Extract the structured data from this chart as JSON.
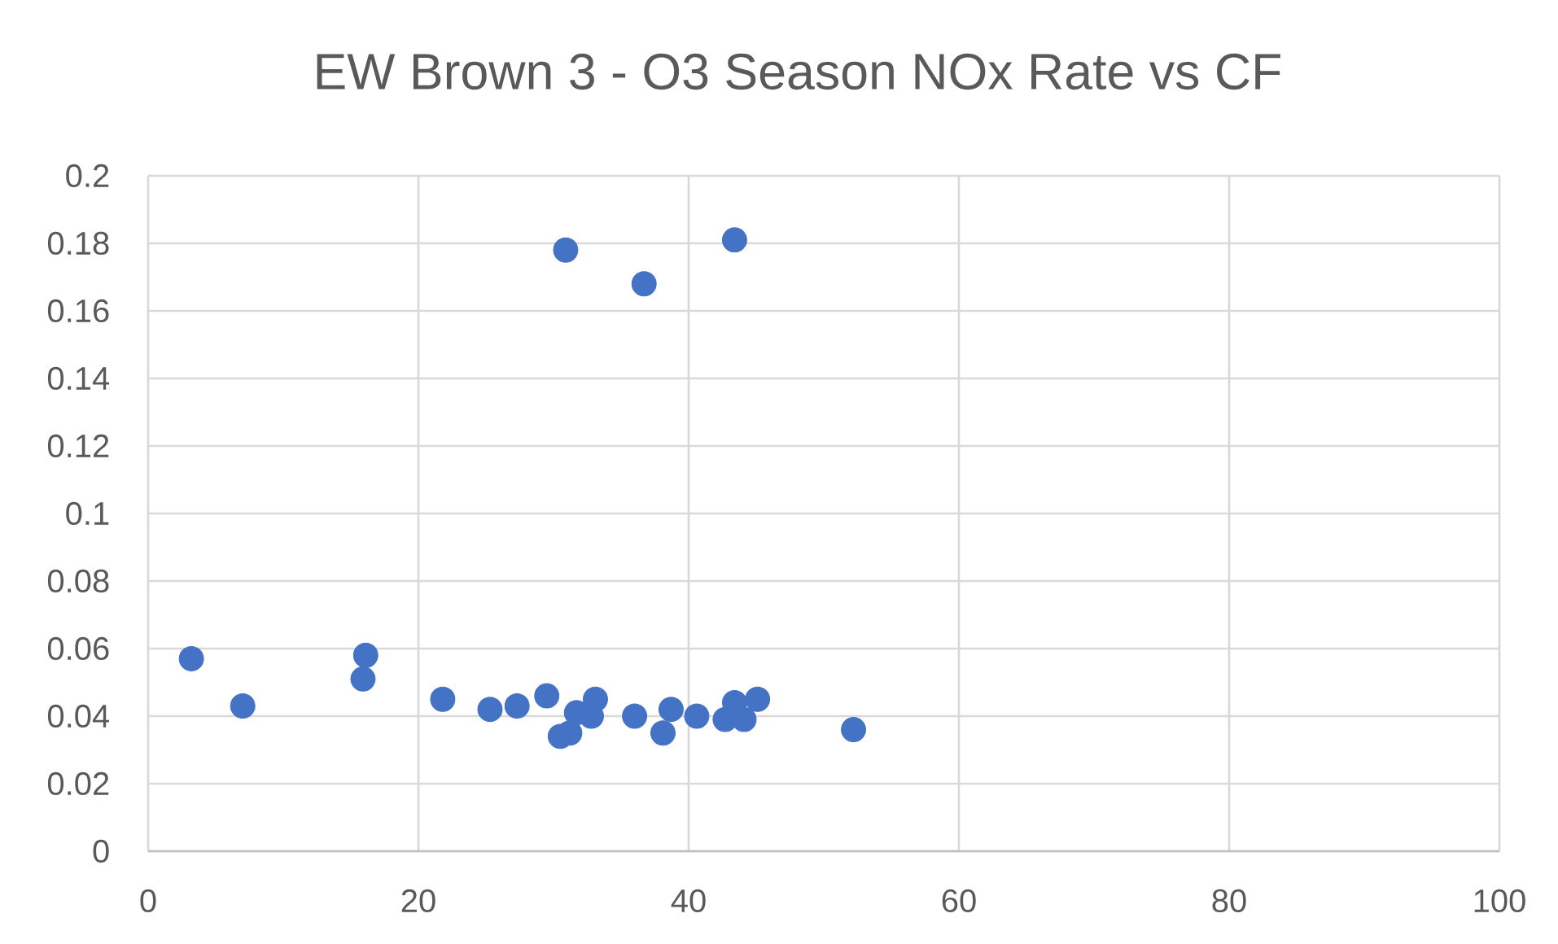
{
  "chart_data": {
    "type": "scatter",
    "title": "EW Brown 3 - O3 Season NOx Rate vs CF",
    "x": [
      3.2,
      7.0,
      16.1,
      15.9,
      21.8,
      25.3,
      27.3,
      29.5,
      30.5,
      31.2,
      31.7,
      32.8,
      33.1,
      36.0,
      38.1,
      38.7,
      40.6,
      42.7,
      43.4,
      44.1,
      45.1,
      52.2,
      30.9,
      36.7,
      43.4
    ],
    "values": [
      0.057,
      0.043,
      0.058,
      0.051,
      0.045,
      0.042,
      0.043,
      0.046,
      0.034,
      0.035,
      0.041,
      0.04,
      0.045,
      0.04,
      0.035,
      0.042,
      0.04,
      0.039,
      0.044,
      0.039,
      0.045,
      0.036,
      0.178,
      0.168,
      0.181
    ],
    "color": "#4472c4",
    "marker": "circle",
    "grid": true,
    "xlim": [
      0,
      100
    ],
    "ylim": [
      0,
      0.2
    ],
    "xticks": [
      0,
      20,
      40,
      60,
      80,
      100
    ],
    "yticks": [
      0,
      0.02,
      0.04,
      0.06,
      0.08,
      0.1,
      0.12,
      0.14,
      0.16,
      0.18,
      0.2
    ]
  }
}
